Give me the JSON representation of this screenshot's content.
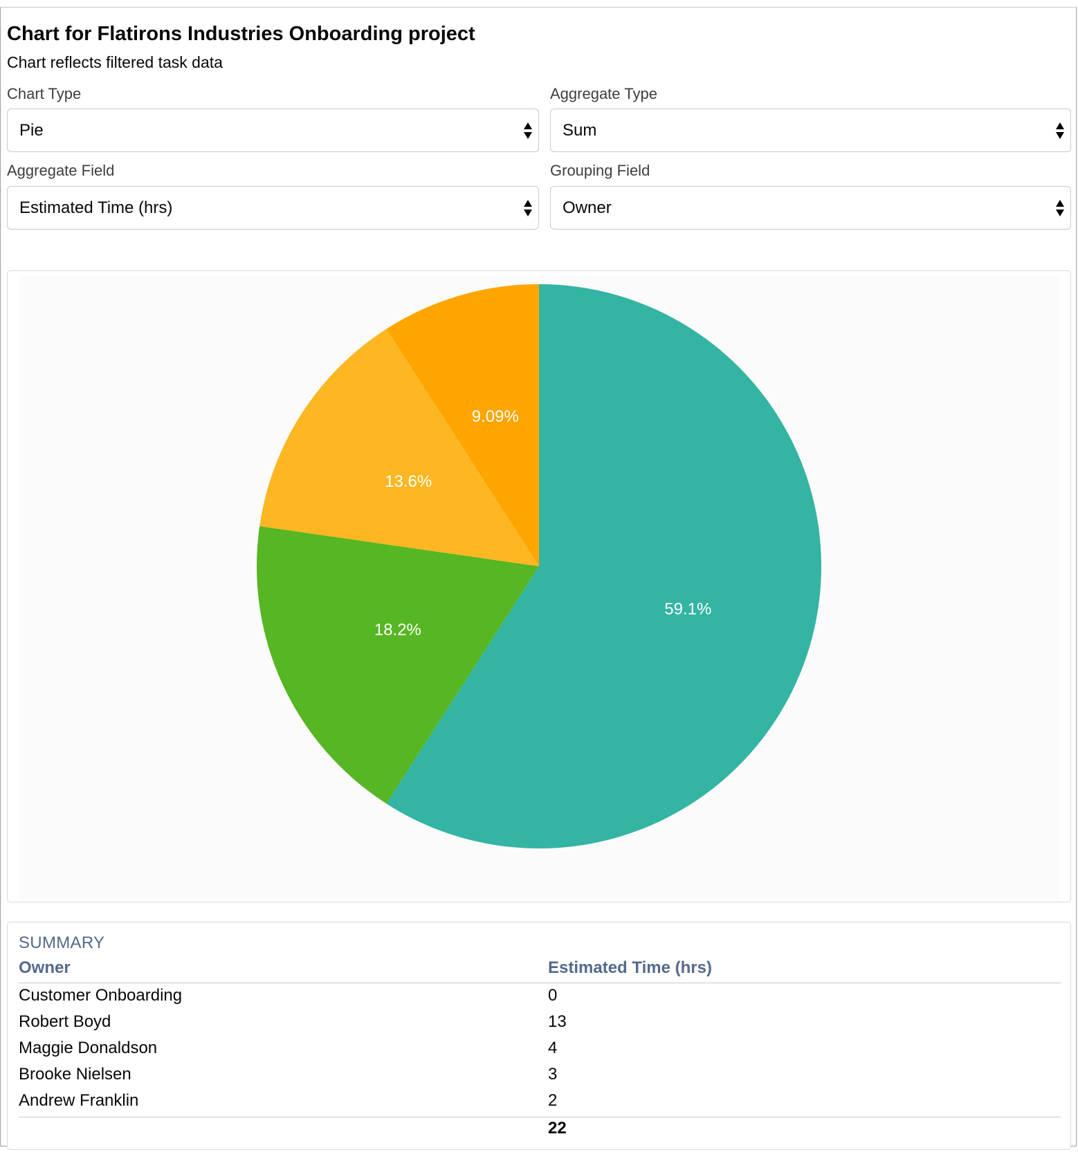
{
  "header": {
    "title": "Chart for Flatirons Industries Onboarding project",
    "subtitle": "Chart reflects filtered task data"
  },
  "controls": {
    "chart_type": {
      "label": "Chart Type",
      "value": "Pie"
    },
    "aggregate_type": {
      "label": "Aggregate Type",
      "value": "Sum"
    },
    "aggregate_field": {
      "label": "Aggregate Field",
      "value": "Estimated Time (hrs)"
    },
    "grouping_field": {
      "label": "Grouping Field",
      "value": "Owner"
    }
  },
  "chart_data": {
    "type": "pie",
    "categories": [
      "Customer Onboarding",
      "Robert Boyd",
      "Maggie Donaldson",
      "Brooke Nielsen",
      "Andrew Franklin"
    ],
    "values": [
      0,
      13,
      4,
      3,
      2
    ],
    "slice_labels": [
      "",
      "59.1%",
      "18.2%",
      "13.6%",
      "9.09%"
    ],
    "colors": [
      "#1b96ff",
      "#34b4a3",
      "#56b623",
      "#fdb722",
      "#ffa500"
    ]
  },
  "summary": {
    "title": "SUMMARY",
    "columns": [
      "Owner",
      "Estimated Time (hrs)"
    ],
    "rows": [
      {
        "owner": "Customer Onboarding",
        "value": "0"
      },
      {
        "owner": "Robert Boyd",
        "value": "13"
      },
      {
        "owner": "Maggie Donaldson",
        "value": "4"
      },
      {
        "owner": "Brooke Nielsen",
        "value": "3"
      },
      {
        "owner": "Andrew Franklin",
        "value": "2"
      }
    ],
    "total": "22"
  }
}
